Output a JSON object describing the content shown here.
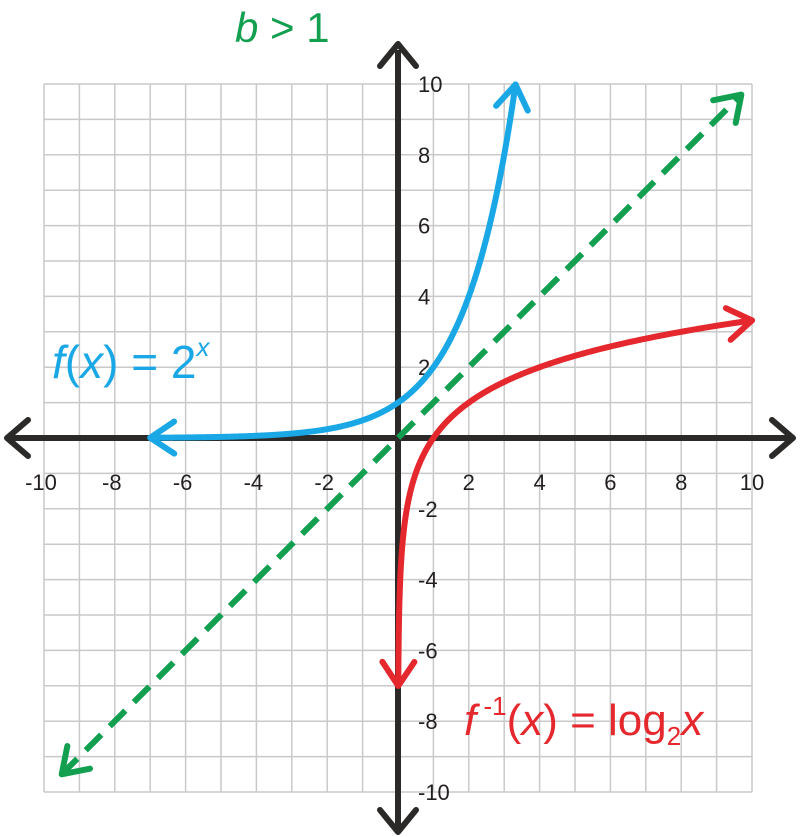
{
  "chart_data": {
    "type": "line",
    "title": "b > 1",
    "title_parts": {
      "var": "b",
      "rest": " > 1"
    },
    "xlim": [
      -10,
      10
    ],
    "ylim": [
      -10,
      10
    ],
    "grid": true,
    "x_tick_labels": [
      "-10",
      "-8",
      "-6",
      "-4",
      "-2",
      "2",
      "4",
      "6",
      "8",
      "10"
    ],
    "y_tick_labels": [
      "10",
      "8",
      "6",
      "4",
      "2",
      "-2",
      "-4",
      "-6",
      "-8",
      "-10"
    ],
    "series": [
      {
        "id": "f",
        "label_parts": {
          "fn": "f",
          "open": "(",
          "var": "x",
          "mid": ") = 2",
          "sup": "x"
        },
        "color": "#1aa7e6",
        "function": "2^x",
        "x_range": [
          -7,
          3.32
        ],
        "arrows": "both",
        "dashed": false
      },
      {
        "id": "finv",
        "label_parts": {
          "fn": "f",
          "sup": " -1",
          "open": "(",
          "var": "x",
          "mid": ") = log",
          "sub": "2",
          "tail": "x"
        },
        "color": "#e4282e",
        "function": "log2(x)",
        "x_range": [
          0.0078,
          10
        ],
        "arrows": "both",
        "dashed": false
      },
      {
        "id": "identity",
        "color": "#12a050",
        "function": "x",
        "x_range": [
          -9.5,
          9.7
        ],
        "arrows": "both",
        "dashed": true
      }
    ]
  }
}
